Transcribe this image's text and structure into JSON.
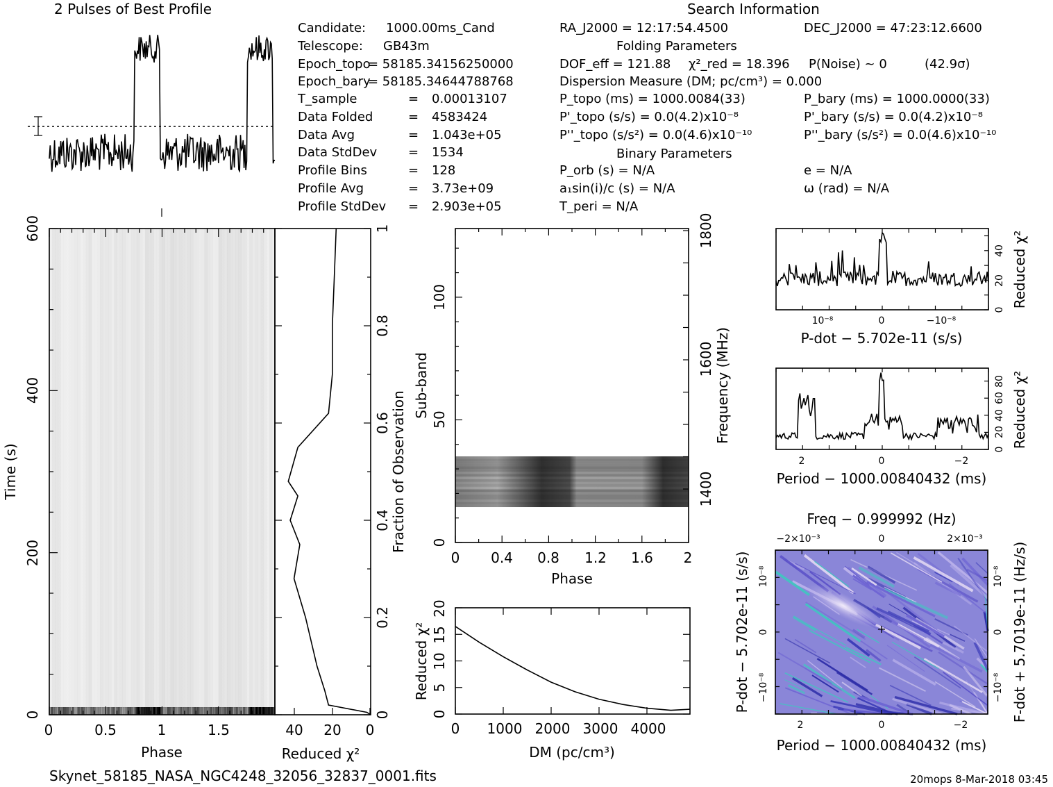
{
  "header": {
    "profile_title": "2 Pulses of Best Profile",
    "search_title": "Search Information",
    "folding_title": "Folding Parameters",
    "binary_title": "Binary Parameters"
  },
  "info_left": [
    {
      "label": "Candidate:",
      "value": "1000.00ms_Cand"
    },
    {
      "label": "Telescope:",
      "value": "GB43m"
    },
    {
      "label": "Epoch_topo",
      "value": "= 58185.34156250000"
    },
    {
      "label": "Epoch_bary",
      "value": "= 58185.34644788768"
    },
    {
      "label": "T_sample",
      "value": "0.00013107"
    },
    {
      "label": "Data Folded",
      "value": "4583424"
    },
    {
      "label": "Data Avg",
      "value": "1.043e+05"
    },
    {
      "label": "Data StdDev",
      "value": "1534"
    },
    {
      "label": "Profile Bins",
      "value": "128"
    },
    {
      "label": "Profile Avg",
      "value": "3.73e+09"
    },
    {
      "label": "Profile StdDev",
      "value": "2.903e+05"
    }
  ],
  "info_right": {
    "ra": "RA_J2000 = 12:17:54.4500",
    "dec": "DEC_J2000 = 47:23:12.6600",
    "dof": "DOF_eff = 121.88",
    "chi2": "χ²_red = 18.396",
    "pnoise": "P(Noise) ~ 0",
    "sigma": "(42.9σ)",
    "dm": "Dispersion Measure (DM; pc/cm³) = 0.000",
    "ptopo": "P_topo (ms) = 1000.0084(33)",
    "pbary": "P_bary (ms) = 1000.0000(33)",
    "pdtopo": "P'_topo (s/s) = 0.0(4.2)x10⁻⁸",
    "pdbary": "P'_bary (s/s) = 0.0(4.2)x10⁻⁸",
    "pddtopo": "P''_topo (s/s²) = 0.0(4.6)x10⁻¹⁰",
    "pddbary": "P''_bary (s/s²) = 0.0(4.6)x10⁻¹⁰",
    "porb": "P_orb (s) = N/A",
    "ecc": "e = N/A",
    "asini": "a₁sin(i)/c (s) = N/A",
    "omega": "ω (rad) = N/A",
    "tperi": "T_peri = N/A"
  },
  "footer": {
    "filename": "Skynet_58185_NASA_NGC4248_32056_32837_0001.fits",
    "stamp": "20mops  8-Mar-2018 03:45"
  },
  "chart_data": [
    {
      "type": "line",
      "name_key": "profile",
      "title": "2 Pulses of Best Profile",
      "x": "phase 0 to 2 (2 pulses, 128 bins each)",
      "pulse_on_phase": [
        0.75,
        0.98
      ],
      "colors": {
        "line": "#000000"
      }
    },
    {
      "type": "heatmap",
      "name_key": "time-phase",
      "xlabel": "Phase",
      "ylabel": "Time (s)",
      "xlim": [
        0,
        2
      ],
      "ylim": [
        0,
        600
      ],
      "xticks": [
        "0",
        "0.5",
        "1",
        "1.5"
      ],
      "yticks": [
        "0",
        "200",
        "400",
        "600"
      ]
    },
    {
      "type": "line",
      "name_key": "chi2-vs-time",
      "xlabel": "Reduced χ²",
      "ylabel": "Fraction of Observation",
      "xlim": [
        50,
        0
      ],
      "ylim": [
        0,
        1
      ],
      "xticks": [
        "40",
        "20",
        "0"
      ],
      "yticks": [
        "0",
        "0.2",
        "0.4",
        "0.6",
        "0.8",
        "1"
      ],
      "points": [
        [
          0,
          0.0
        ],
        [
          2,
          0.005
        ],
        [
          22,
          0.02
        ],
        [
          24,
          0.05
        ],
        [
          28,
          0.1
        ],
        [
          34,
          0.2
        ],
        [
          40,
          0.28
        ],
        [
          37,
          0.35
        ],
        [
          42,
          0.4
        ],
        [
          38,
          0.45
        ],
        [
          43,
          0.48
        ],
        [
          38,
          0.55
        ],
        [
          22,
          0.62
        ],
        [
          20,
          0.7
        ],
        [
          20,
          0.8
        ],
        [
          19,
          0.9
        ],
        [
          18,
          1.0
        ]
      ]
    },
    {
      "type": "heatmap",
      "name_key": "subband-phase",
      "xlabel": "Phase",
      "ylabel": "Sub-band",
      "ylabel_right": "Frequency (MHz)",
      "xlim": [
        0,
        2
      ],
      "ylim": [
        0,
        128
      ],
      "xticks": [
        "0",
        "0.4",
        "0.8",
        "1.2",
        "1.6",
        "2"
      ],
      "yticks": [
        "0",
        "50",
        "100"
      ],
      "yticks_right": [
        "1400",
        "1600",
        "1800"
      ],
      "active_subbands": [
        14,
        35
      ]
    },
    {
      "type": "line",
      "name_key": "chi2-vs-dm",
      "xlabel": "DM (pc/cm³)",
      "ylabel": "Reduced χ²",
      "xlim": [
        0,
        4900
      ],
      "ylim": [
        0,
        20
      ],
      "xticks": [
        "0",
        "1000",
        "2000",
        "3000",
        "4000"
      ],
      "yticks": [
        "0",
        "5",
        "10",
        "15",
        "20"
      ],
      "points": [
        [
          0,
          16.5
        ],
        [
          500,
          13.5
        ],
        [
          1000,
          10.8
        ],
        [
          1500,
          8.3
        ],
        [
          2000,
          6.0
        ],
        [
          2500,
          4.2
        ],
        [
          3000,
          2.8
        ],
        [
          3500,
          1.8
        ],
        [
          4000,
          1.1
        ],
        [
          4500,
          0.7
        ],
        [
          4900,
          0.9
        ]
      ]
    },
    {
      "type": "line",
      "name_key": "chi2-vs-pdot",
      "xlabel": "P-dot − 5.702e-11 (s/s)",
      "ylabel": "Reduced χ²",
      "ylim": [
        0,
        55
      ],
      "xticks": [
        "10⁻⁸",
        "0",
        "−10⁻⁸"
      ],
      "yticks": [
        "0",
        "20",
        "40"
      ]
    },
    {
      "type": "line",
      "name_key": "chi2-vs-period",
      "xlabel": "Period − 1000.00840432 (ms)",
      "ylabel": "Reduced χ²",
      "ylim": [
        0,
        95
      ],
      "xticks": [
        "2",
        "0",
        "−2"
      ],
      "yticks": [
        "0",
        "20",
        "40",
        "60",
        "80"
      ]
    },
    {
      "type": "heatmap",
      "name_key": "period-pdot",
      "title": "Freq − 0.999992 (Hz)",
      "xlabel": "Period − 1000.00840432 (ms)",
      "ylabel": "P-dot − 5.702e-11 (s/s)",
      "ylabel_right": "F-dot + 5.7019e-11 (Hz/s)",
      "xticks": [
        "2",
        "0",
        "−2"
      ],
      "xticks_top": [
        "−2×10⁻³",
        "0",
        "2×10⁻³"
      ],
      "yticks": [
        "10⁻⁸",
        "0",
        "−10⁻⁸"
      ],
      "yticks_right": [
        "10⁻⁸",
        "0",
        "−10⁻⁸"
      ],
      "colors": {
        "bg": "#8a86d8",
        "dark": "#3a3ab8",
        "light": "#e6dcf4",
        "cyan": "#3fc8c0"
      }
    }
  ]
}
